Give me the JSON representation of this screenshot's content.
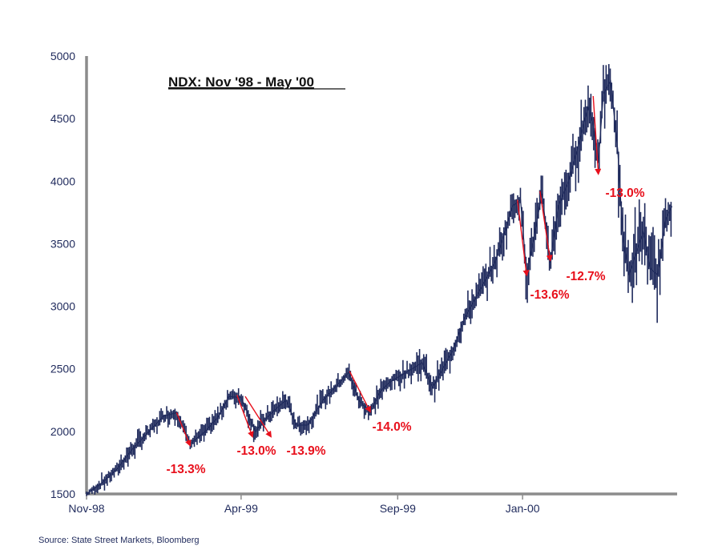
{
  "chart_data": {
    "type": "line",
    "title": "NDX: Nov '98 - May '00",
    "xlabel": "",
    "ylabel": "",
    "ylim": [
      1500,
      5000
    ],
    "y_ticks": [
      1500,
      2000,
      2500,
      3000,
      3500,
      4000,
      4500,
      5000
    ],
    "x_ticks": [
      "Nov-98",
      "Apr-99",
      "Sep-99",
      "Jan-00"
    ],
    "x_range": [
      "1998-11-01",
      "2000-05-31"
    ],
    "series": [
      {
        "name": "NDX",
        "color": "#1f2a5c",
        "x": [
          "1998-11-01",
          "1998-11-15",
          "1998-12-01",
          "1998-12-15",
          "1999-01-01",
          "1999-01-15",
          "1999-01-28",
          "1999-02-10",
          "1999-02-25",
          "1999-03-10",
          "1999-03-20",
          "1999-04-01",
          "1999-04-15",
          "1999-04-25",
          "1999-05-05",
          "1999-05-15",
          "1999-05-25",
          "1999-06-05",
          "1999-06-20",
          "1999-07-05",
          "1999-07-15",
          "1999-07-25",
          "1999-08-05",
          "1999-08-15",
          "1999-08-25",
          "1999-09-05",
          "1999-09-15",
          "1999-09-25",
          "1999-10-05",
          "1999-10-15",
          "1999-10-25",
          "1999-11-05",
          "1999-11-15",
          "1999-11-25",
          "1999-12-05",
          "1999-12-15",
          "1999-12-22",
          "1999-12-30",
          "2000-01-05",
          "2000-01-12",
          "2000-01-20",
          "2000-01-28",
          "2000-02-05",
          "2000-02-15",
          "2000-02-25",
          "2000-03-05",
          "2000-03-10",
          "2000-03-15",
          "2000-03-20",
          "2000-03-27",
          "2000-04-03",
          "2000-04-08",
          "2000-04-14",
          "2000-04-20",
          "2000-04-28",
          "2000-05-05",
          "2000-05-12",
          "2000-05-20",
          "2000-05-26"
        ],
        "values": [
          1500,
          1580,
          1700,
          1850,
          2000,
          2120,
          2150,
          1900,
          2000,
          2120,
          2280,
          2270,
          2000,
          2100,
          2180,
          2250,
          2050,
          2050,
          2250,
          2380,
          2470,
          2250,
          2150,
          2320,
          2400,
          2450,
          2500,
          2550,
          2350,
          2500,
          2650,
          2900,
          3050,
          3200,
          3350,
          3600,
          3800,
          3850,
          3250,
          3550,
          3900,
          3350,
          3800,
          4000,
          4300,
          4600,
          4450,
          4150,
          4700,
          4800,
          4250,
          3550,
          3250,
          3400,
          3600,
          3300,
          3250,
          3700,
          3800
        ],
        "range_low": [
          1490,
          1550,
          1660,
          1800,
          1960,
          2080,
          2100,
          1860,
          1960,
          2080,
          2230,
          2220,
          1960,
          2050,
          2130,
          2200,
          2010,
          2000,
          2200,
          2330,
          2420,
          2200,
          2110,
          2270,
          2350,
          2400,
          2440,
          2480,
          2300,
          2440,
          2600,
          2830,
          2980,
          3130,
          3280,
          3520,
          3720,
          3780,
          3150,
          3450,
          3820,
          3280,
          3700,
          3900,
          4180,
          4480,
          4300,
          4050,
          4550,
          4680,
          4100,
          3400,
          3120,
          3250,
          3450,
          3150,
          3120,
          3550,
          3700
        ],
        "range_high": [
          1520,
          1610,
          1740,
          1890,
          2040,
          2160,
          2190,
          1940,
          2040,
          2160,
          2310,
          2300,
          2050,
          2140,
          2220,
          2290,
          2090,
          2090,
          2290,
          2420,
          2500,
          2290,
          2190,
          2360,
          2440,
          2500,
          2560,
          2600,
          2400,
          2560,
          2700,
          2960,
          3120,
          3260,
          3420,
          3680,
          3880,
          3920,
          3350,
          3650,
          3980,
          3450,
          3900,
          4100,
          4420,
          4700,
          4560,
          4250,
          4800,
          4830,
          4400,
          3700,
          3380,
          3550,
          3750,
          3450,
          3380,
          3820,
          3880
        ]
      }
    ],
    "drawdowns": [
      {
        "label": "-13.3%",
        "from_date": "1999-01-28",
        "from_value": 2150,
        "to_date": "1999-02-10",
        "to_value": 1890
      },
      {
        "label": "-13.0%",
        "from_date": "1999-03-28",
        "from_value": 2290,
        "to_date": "1999-04-12",
        "to_value": 1960
      },
      {
        "label": "-13.9%",
        "from_date": "1999-04-05",
        "from_value": 2280,
        "to_date": "1999-04-30",
        "to_value": 1960
      },
      {
        "label": "-14.0%",
        "from_date": "1999-07-16",
        "from_value": 2480,
        "to_date": "1999-08-05",
        "to_value": 2160
      },
      {
        "label": "-13.6%",
        "from_date": "1999-12-27",
        "from_value": 3850,
        "to_date": "2000-01-05",
        "to_value": 3250
      },
      {
        "label": "-12.7%",
        "from_date": "2000-01-18",
        "from_value": 3920,
        "to_date": "2000-01-28",
        "to_value": 3370
      },
      {
        "label": "-13.0%",
        "from_date": "2000-03-10",
        "from_value": 4680,
        "to_date": "2000-03-15",
        "to_value": 4060
      }
    ],
    "annotation_color": "#e8101c",
    "axis_color": "#8c8c8c"
  },
  "source": "Source: State Street Markets, Bloomberg"
}
